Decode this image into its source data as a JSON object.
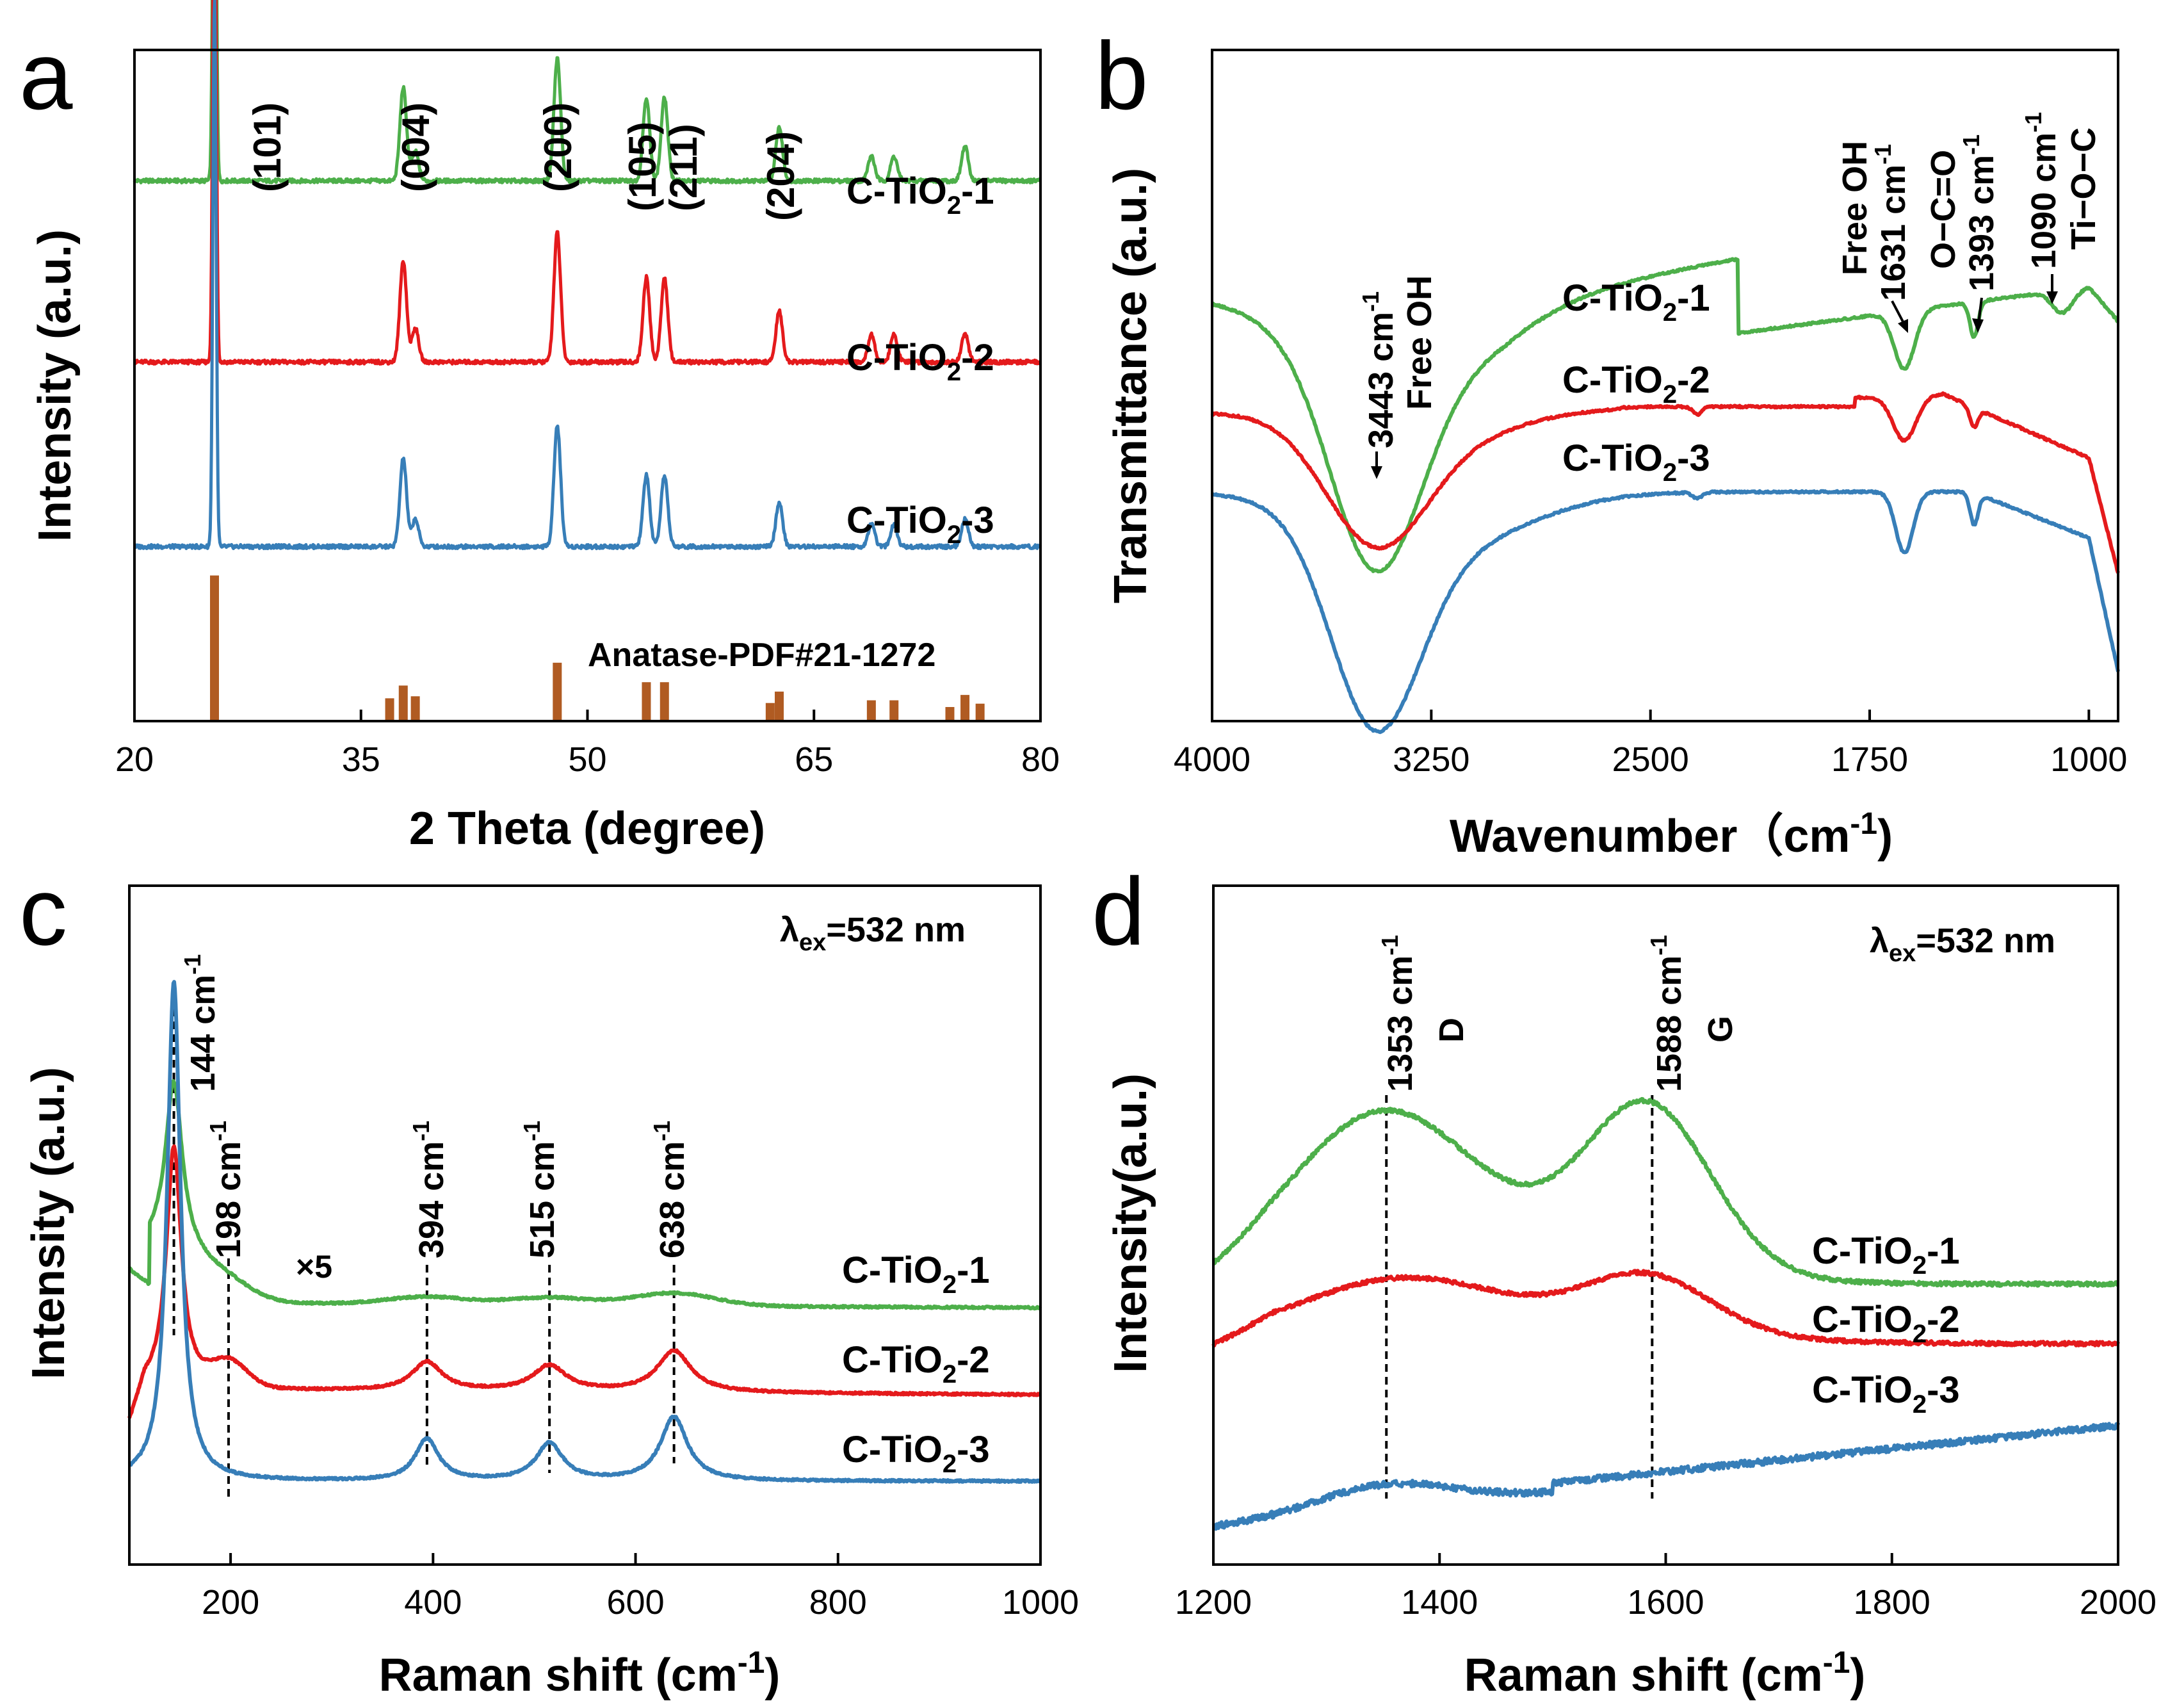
{
  "colors": {
    "series1": "#4daf4a",
    "series2": "#e41a1c",
    "series3": "#377eb8",
    "pdf": "#b05b22",
    "axis": "#000000"
  },
  "chart_data": [
    {
      "panel_label": "a",
      "type": "line",
      "title": "",
      "xlabel": "2 Theta (degree)",
      "ylabel": "Intensity (a.u.)",
      "xlim": [
        20,
        80
      ],
      "xticks": [
        20,
        35,
        50,
        65,
        80
      ],
      "grid": false,
      "series": [
        {
          "name": "C-TiO2-1",
          "label_main": "C-TiO",
          "label_sub": "2",
          "label_tail": "-1",
          "color_key": "series1",
          "baseline": 0.805,
          "peak_scale": 0.73,
          "peaks": [
            [
              25.3,
              1.0
            ],
            [
              37.8,
              0.19
            ],
            [
              38.6,
              0.06
            ],
            [
              48.0,
              0.25
            ],
            [
              53.9,
              0.17
            ],
            [
              55.1,
              0.17
            ],
            [
              62.7,
              0.11
            ],
            [
              68.8,
              0.05
            ],
            [
              70.3,
              0.05
            ],
            [
              75.0,
              0.07
            ]
          ]
        },
        {
          "name": "C-TiO2-2",
          "label_main": "C-TiO",
          "label_sub": "2",
          "label_tail": "-2",
          "color_key": "series2",
          "baseline": 0.535,
          "peak_scale": 0.84,
          "peaks": [
            [
              25.3,
              1.0
            ],
            [
              37.8,
              0.18
            ],
            [
              38.6,
              0.06
            ],
            [
              48.0,
              0.23
            ],
            [
              53.9,
              0.15
            ],
            [
              55.1,
              0.15
            ],
            [
              62.7,
              0.09
            ],
            [
              68.8,
              0.05
            ],
            [
              70.3,
              0.05
            ],
            [
              75.0,
              0.05
            ]
          ]
        },
        {
          "name": "C-TiO2-3",
          "label_main": "C-TiO",
          "label_sub": "2",
          "label_tail": "-3",
          "color_key": "series3",
          "baseline": 0.26,
          "peak_scale": 0.82,
          "peaks": [
            [
              25.3,
              1.0
            ],
            [
              37.8,
              0.16
            ],
            [
              38.6,
              0.05
            ],
            [
              48.0,
              0.22
            ],
            [
              53.9,
              0.13
            ],
            [
              55.1,
              0.13
            ],
            [
              62.7,
              0.08
            ],
            [
              68.8,
              0.04
            ],
            [
              70.3,
              0.04
            ],
            [
              75.0,
              0.05
            ]
          ]
        }
      ],
      "reference": {
        "name": "Anatase-PDF#21-1272",
        "color_key": "pdf",
        "lines": [
          [
            25.3,
            0.217
          ],
          [
            36.9,
            0.034
          ],
          [
            37.8,
            0.053
          ],
          [
            38.6,
            0.037
          ],
          [
            48.0,
            0.087
          ],
          [
            53.9,
            0.058
          ],
          [
            55.1,
            0.058
          ],
          [
            62.1,
            0.027
          ],
          [
            62.7,
            0.044
          ],
          [
            68.8,
            0.031
          ],
          [
            70.3,
            0.031
          ],
          [
            74.0,
            0.021
          ],
          [
            75.0,
            0.039
          ],
          [
            76.0,
            0.026
          ]
        ]
      },
      "annotations": [
        {
          "text": "(101)",
          "x": 27.0
        },
        {
          "text": "(004)",
          "x": 37.8
        },
        {
          "text": "(200)",
          "x": 48.0
        },
        {
          "text": "(105)",
          "x": 53.9
        },
        {
          "text": "(211)",
          "x": 55.6
        },
        {
          "text": "(204)",
          "x": 62.7
        }
      ]
    },
    {
      "panel_label": "b",
      "type": "line",
      "title": "",
      "xlabel": "Wavenumber (cm-1)",
      "xlabel_main": "Wavenumber（cm",
      "xlabel_sup": "-1",
      "xlabel_tail": ")",
      "ylabel": "Transmittance (a.u.)",
      "xlim": [
        4000,
        900
      ],
      "xticks": [
        4000,
        3250,
        2500,
        1750,
        1000
      ],
      "grid": false,
      "series": [
        {
          "name": "C-TiO2-1",
          "label_main": "C-TiO",
          "label_sub": "2",
          "label_tail": "-1",
          "color_key": "series1"
        },
        {
          "name": "C-TiO2-2",
          "label_main": "C-TiO",
          "label_sub": "2",
          "label_tail": "-2",
          "color_key": "series2"
        },
        {
          "name": "C-TiO2-3",
          "label_main": "C-TiO",
          "label_sub": "2",
          "label_tail": "-3",
          "color_key": "series3"
        }
      ],
      "annotations": [
        {
          "lines": [
            "3443 cm",
            "Free OH"
          ],
          "sup": "-1",
          "x": 3443
        },
        {
          "lines": [
            "Free OH",
            "1631 cm"
          ],
          "sup": "-1",
          "x": 1631
        },
        {
          "lines": [
            "O−C=O",
            "1393 cm"
          ],
          "sup": "-1",
          "x": 1393
        },
        {
          "lines": [
            "1090 cm",
            "Ti−O−C"
          ],
          "sup": "-1",
          "x": 1090
        }
      ]
    },
    {
      "panel_label": "c",
      "type": "line",
      "title": "",
      "excitation": {
        "main": "λ",
        "sub": "ex",
        "tail": "=532 nm"
      },
      "xlabel": "Raman shift (cm-1)",
      "xlabel_main": "Raman shift (cm",
      "xlabel_sup": "-1",
      "xlabel_tail": ")",
      "ylabel": "Intensity (a.u.)",
      "xlim": [
        100,
        1000
      ],
      "xticks": [
        200,
        400,
        600,
        800,
        1000
      ],
      "grid": false,
      "series": [
        {
          "name": "C-TiO2-1",
          "label_main": "C-TiO",
          "label_sub": "2",
          "label_tail": "-1",
          "color_key": "series1"
        },
        {
          "name": "C-TiO2-2",
          "label_main": "C-TiO",
          "label_sub": "2",
          "label_tail": "-2",
          "color_key": "series2"
        },
        {
          "name": "C-TiO2-3",
          "label_main": "C-TiO",
          "label_sub": "2",
          "label_tail": "-3",
          "color_key": "series3"
        }
      ],
      "annotations": [
        {
          "text": "144 cm",
          "sup": "-1",
          "x": 144
        },
        {
          "text": "198 cm",
          "sup": "-1",
          "x": 198
        },
        {
          "text": "394 cm",
          "sup": "-1",
          "x": 394
        },
        {
          "text": "515 cm",
          "sup": "-1",
          "x": 515
        },
        {
          "text": "638 cm",
          "sup": "-1",
          "x": 638
        }
      ],
      "multiplier": "×5"
    },
    {
      "panel_label": "d",
      "type": "line",
      "title": "",
      "excitation": {
        "main": "λ",
        "sub": "ex",
        "tail": "=532 nm"
      },
      "xlabel": "Raman shift (cm-1)",
      "xlabel_main": "Raman shift (cm",
      "xlabel_sup": "-1",
      "xlabel_tail": ")",
      "ylabel": "Intensity(a.u.)",
      "xlim": [
        1200,
        2000
      ],
      "xticks": [
        1200,
        1400,
        1600,
        1800,
        2000
      ],
      "grid": false,
      "series": [
        {
          "name": "C-TiO2-1",
          "label_main": "C-TiO",
          "label_sub": "2",
          "label_tail": "-1",
          "color_key": "series1"
        },
        {
          "name": "C-TiO2-2",
          "label_main": "C-TiO",
          "label_sub": "2",
          "label_tail": "-2",
          "color_key": "series2"
        },
        {
          "name": "C-TiO2-3",
          "label_main": "C-TiO",
          "label_sub": "2",
          "label_tail": "-3",
          "color_key": "series3"
        }
      ],
      "annotations": [
        {
          "text": "1353 cm",
          "sup": "-1",
          "band": "D",
          "x": 1353
        },
        {
          "text": "1588 cm",
          "sup": "-1",
          "band": "G",
          "x": 1588
        }
      ]
    }
  ]
}
